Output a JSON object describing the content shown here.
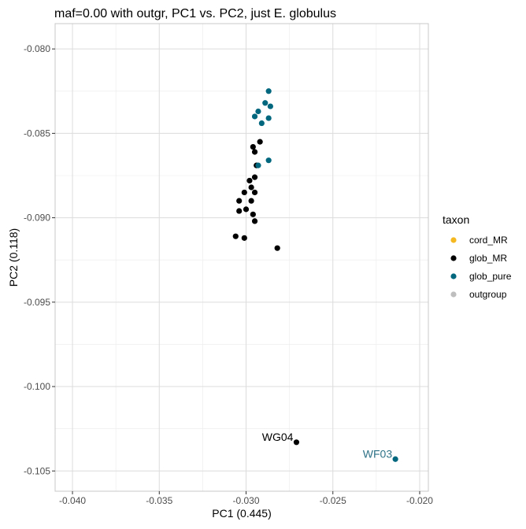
{
  "chart_data": {
    "type": "scatter",
    "title": "maf=0.00 with outgr, PC1 vs. PC2, just E. globulus",
    "xlabel": "PC1 (0.445)",
    "ylabel": "PC2 (0.118)",
    "xlim": [
      -0.041,
      -0.0195
    ],
    "ylim": [
      -0.1062,
      -0.0785
    ],
    "x_ticks": [
      -0.04,
      -0.035,
      -0.03,
      -0.025,
      -0.02
    ],
    "x_tick_labels": [
      "-0.040",
      "-0.035",
      "-0.030",
      "-0.025",
      "-0.020"
    ],
    "y_ticks": [
      -0.08,
      -0.085,
      -0.09,
      -0.095,
      -0.1,
      -0.105
    ],
    "y_tick_labels": [
      "-0.080",
      "-0.085",
      "-0.090",
      "-0.095",
      "-0.100",
      "-0.105"
    ],
    "grid": true,
    "legend_position": "right",
    "legend_title": "taxon",
    "series": [
      {
        "name": "cord_MR",
        "color": "#F5B820",
        "points": []
      },
      {
        "name": "glob_MR",
        "color": "#000000",
        "points": [
          [
            -0.0292,
            -0.0855
          ],
          [
            -0.0296,
            -0.0858
          ],
          [
            -0.0295,
            -0.0861
          ],
          [
            -0.0294,
            -0.0869
          ],
          [
            -0.0298,
            -0.0878
          ],
          [
            -0.0295,
            -0.0876
          ],
          [
            -0.0297,
            -0.0882
          ],
          [
            -0.0301,
            -0.0885
          ],
          [
            -0.0295,
            -0.0885
          ],
          [
            -0.0304,
            -0.089
          ],
          [
            -0.0297,
            -0.089
          ],
          [
            -0.0304,
            -0.0896
          ],
          [
            -0.03,
            -0.0895
          ],
          [
            -0.0296,
            -0.0898
          ],
          [
            -0.0295,
            -0.0902
          ],
          [
            -0.0306,
            -0.0911
          ],
          [
            -0.0301,
            -0.0912
          ],
          [
            -0.0282,
            -0.0918
          ],
          [
            -0.0271,
            -0.1033
          ]
        ]
      },
      {
        "name": "glob_pure",
        "color": "#00677F",
        "points": [
          [
            -0.0287,
            -0.0825
          ],
          [
            -0.0289,
            -0.0832
          ],
          [
            -0.0286,
            -0.0834
          ],
          [
            -0.0293,
            -0.0837
          ],
          [
            -0.0295,
            -0.084
          ],
          [
            -0.0287,
            -0.0841
          ],
          [
            -0.0291,
            -0.0844
          ],
          [
            -0.0293,
            -0.0869
          ],
          [
            -0.0287,
            -0.0866
          ],
          [
            -0.0214,
            -0.1043
          ]
        ]
      },
      {
        "name": "outgroup",
        "color": "#BEBEBE",
        "points": []
      }
    ],
    "annotations": [
      {
        "text": "WG04",
        "x": -0.0271,
        "y": -0.1033,
        "color": "#000000"
      },
      {
        "text": "WF03",
        "x": -0.0214,
        "y": -0.1043,
        "color": "#2E7287"
      }
    ]
  },
  "style": {
    "panel_border": "#C8C8C8",
    "grid_color": "#DCDCDC",
    "text_color": "#000000",
    "tick_color": "#4D4D4D"
  }
}
